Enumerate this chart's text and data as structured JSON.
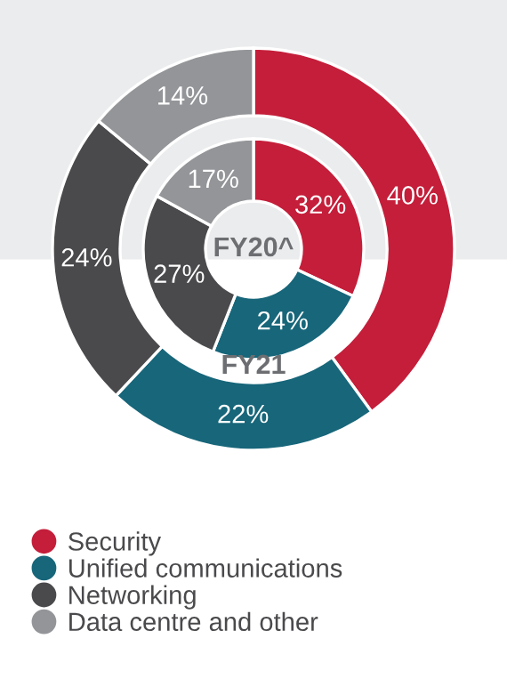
{
  "chart_data": {
    "type": "donut",
    "categories": [
      "Security",
      "Unified communications",
      "Networking",
      "Data centre and other"
    ],
    "colors": [
      "#c41e3a",
      "#17667a",
      "#4a4a4d",
      "#939598"
    ],
    "series": [
      {
        "name": "FY21",
        "values": [
          40,
          22,
          24,
          14
        ],
        "value_labels": [
          "40%",
          "22%",
          "24%",
          "14%"
        ]
      },
      {
        "name": "FY20^",
        "values": [
          32,
          24,
          27,
          17
        ],
        "value_labels": [
          "32%",
          "24%",
          "27%",
          "17%"
        ]
      }
    ],
    "legend": "bottom"
  }
}
